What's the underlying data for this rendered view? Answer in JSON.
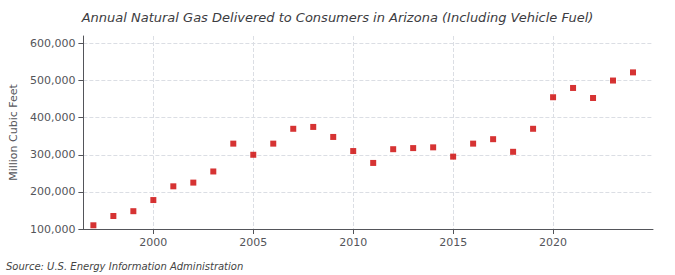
{
  "chart_data": {
    "type": "scatter",
    "title": "Annual Natural Gas Delivered to Consumers in Arizona (Including Vehicle Fuel)",
    "ylabel": "Million Cubic Feet",
    "annotation": "Source: U.S. Energy Information Administration",
    "x": [
      1997,
      1998,
      1999,
      2000,
      2001,
      2002,
      2003,
      2004,
      2005,
      2006,
      2007,
      2008,
      2009,
      2010,
      2011,
      2012,
      2013,
      2014,
      2015,
      2016,
      2017,
      2018,
      2019,
      2020,
      2021,
      2022,
      2023,
      2024
    ],
    "values": [
      110000,
      135000,
      148000,
      178000,
      215000,
      225000,
      255000,
      330000,
      300000,
      330000,
      370000,
      375000,
      348000,
      310000,
      278000,
      315000,
      318000,
      320000,
      295000,
      330000,
      342000,
      308000,
      370000,
      455000,
      480000,
      453000,
      500000,
      522000
    ],
    "color": "#cc0000",
    "marker": "square",
    "xlim": [
      1996.5,
      2025
    ],
    "xticks": [
      2000,
      2005,
      2010,
      2015,
      2020
    ],
    "ylim": [
      100000,
      620000
    ],
    "yticks": [
      {
        "value": 100000,
        "label": "100,000"
      },
      {
        "value": 200000,
        "label": "200,000"
      },
      {
        "value": 300000,
        "label": "300,000"
      },
      {
        "value": 400000,
        "label": "400,000"
      },
      {
        "value": 500000,
        "label": "500,000"
      },
      {
        "value": 600000,
        "label": "600,000"
      }
    ],
    "grid": true
  }
}
